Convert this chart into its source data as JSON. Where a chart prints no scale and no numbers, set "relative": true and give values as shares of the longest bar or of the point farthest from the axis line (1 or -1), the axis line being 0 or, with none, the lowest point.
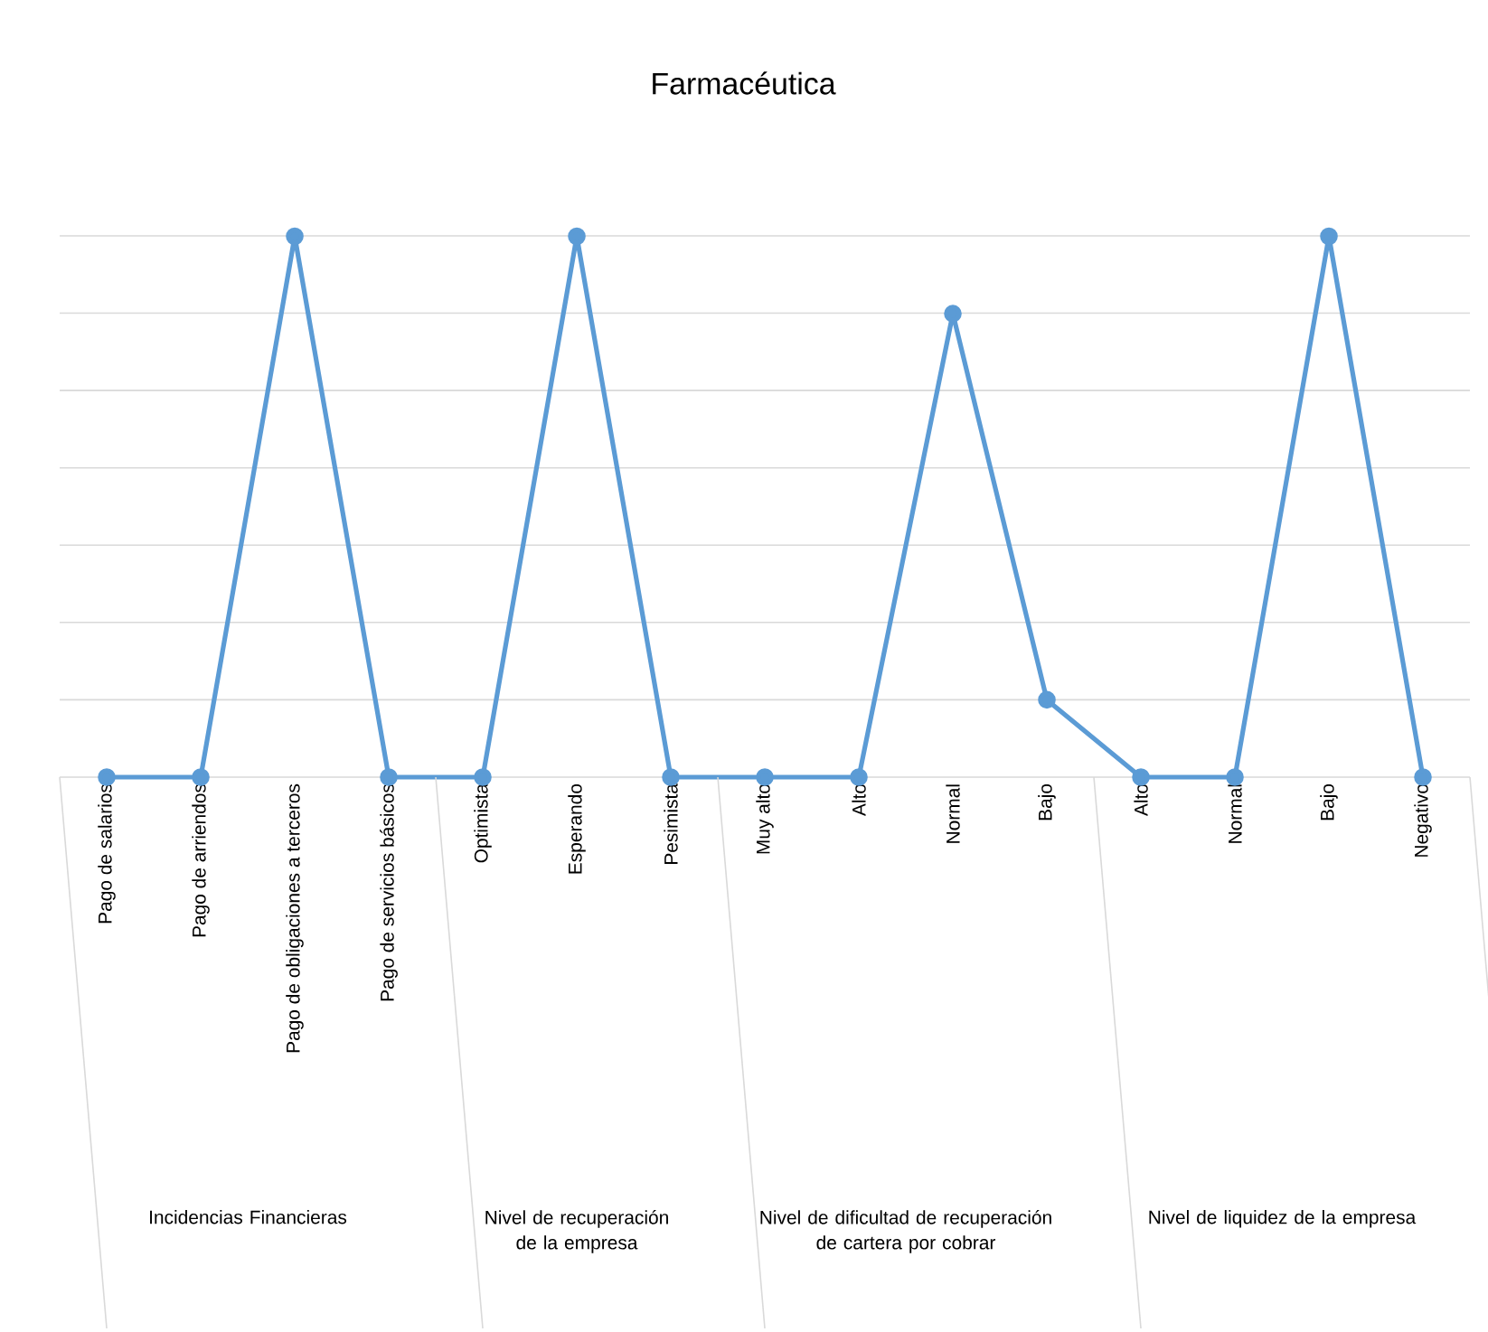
{
  "chart_data": {
    "type": "line",
    "title": "Farmacéutica",
    "categories": [
      "Pago de salarios",
      "Pago de arriendos",
      "Pago de obligaciones a terceros",
      "Pago de servicios básicos",
      "Optimista",
      "Esperando",
      "Pesimista",
      "Muy alto",
      "Alto",
      "Normal",
      "Bajo",
      "Alto",
      "Normal",
      "Bajo",
      "Negativo"
    ],
    "values": [
      0,
      0,
      1,
      0,
      0,
      1,
      0,
      0,
      0,
      0.857,
      0.143,
      0,
      0,
      1,
      0
    ],
    "color": "#5b9bd5",
    "relative": true,
    "grid": "y",
    "marker": "circle",
    "line_style": "solid",
    "annotations": [
      "Incidencias Financieras",
      "Nivel de recuperación de la empresa",
      "Nivel de dificultad de recuperación de cartera por cobrar",
      "Nivel de liquidez de la empresa"
    ]
  }
}
